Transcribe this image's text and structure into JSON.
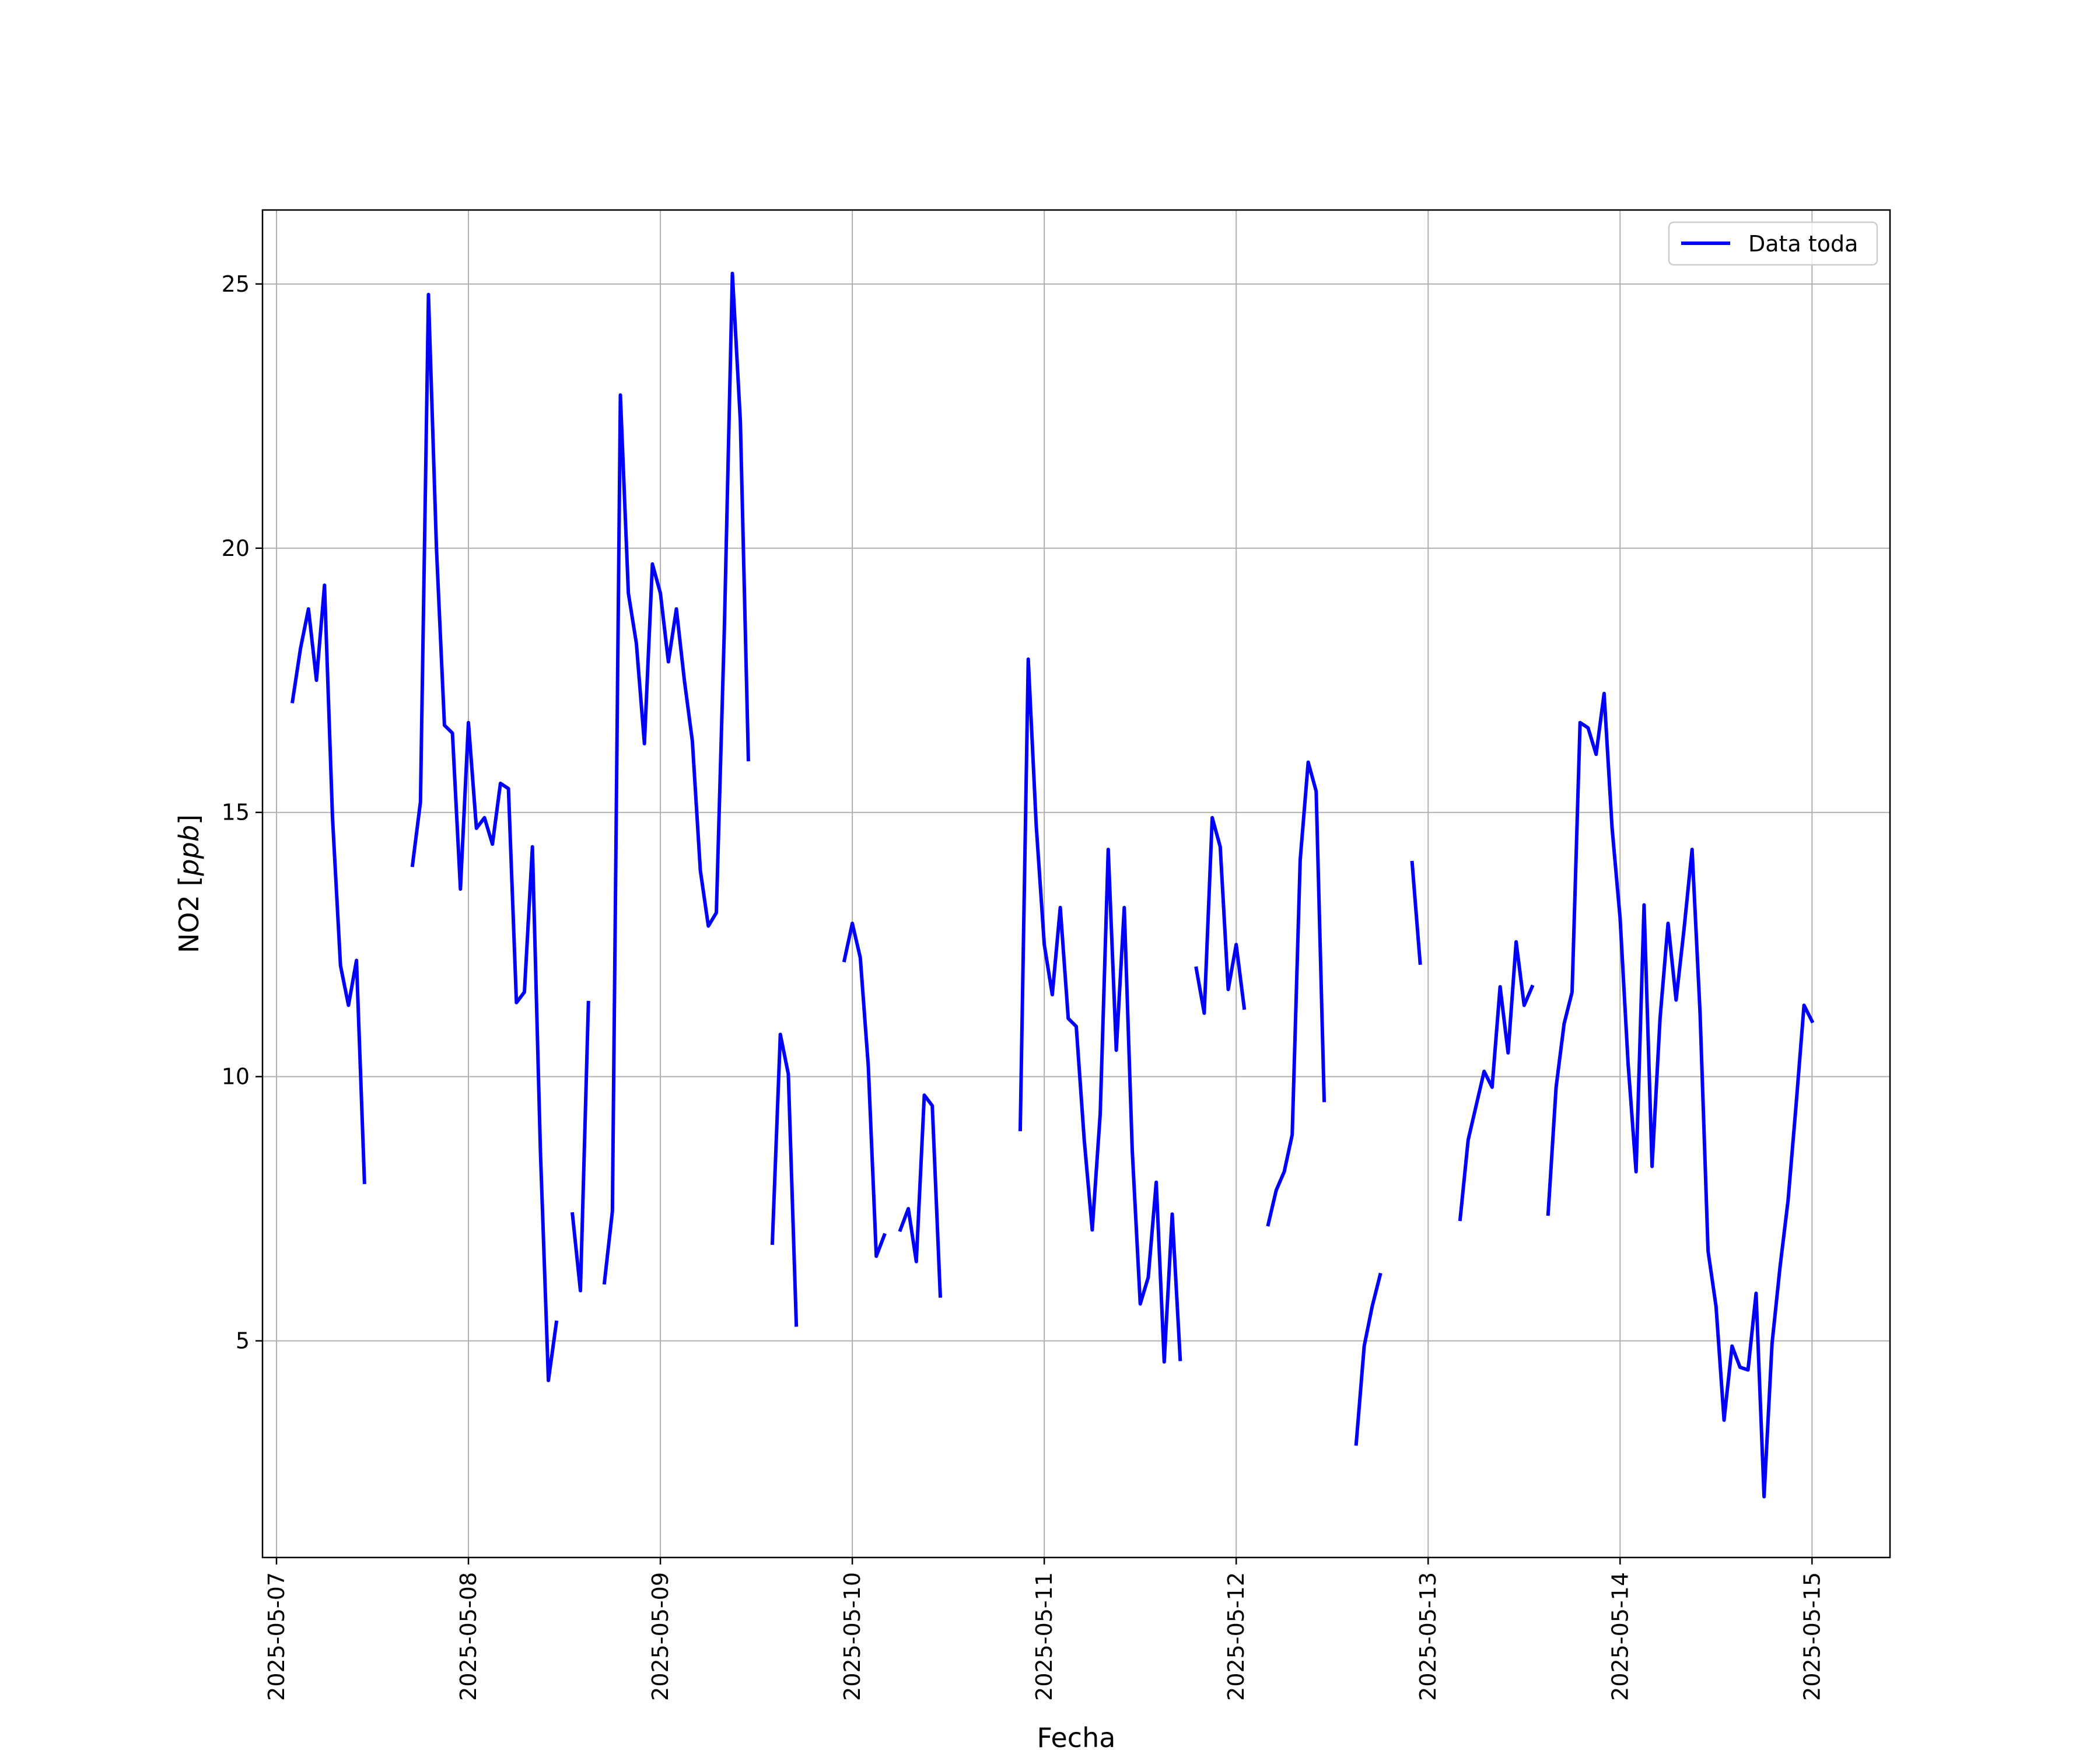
{
  "chart_data": {
    "type": "line",
    "title": "",
    "xlabel": "Fecha",
    "ylabel_main": "NO2 [",
    "ylabel_unit": "ppb",
    "ylabel_close": "]",
    "xlim": [
      "2025-05-06T22:15",
      "2025-05-15T09:45"
    ],
    "ylim": [
      0.9,
      26.4
    ],
    "x_ticks": [
      "2025-05-07",
      "2025-05-08",
      "2025-05-09",
      "2025-05-10",
      "2025-05-11",
      "2025-05-12",
      "2025-05-13",
      "2025-05-14",
      "2025-05-15"
    ],
    "y_ticks": [
      5,
      10,
      15,
      20,
      25
    ],
    "grid": true,
    "legend_position": "top-right",
    "series": [
      {
        "name": "Data toda",
        "color": "#0000ff",
        "segments": [
          [
            [
              "2025-05-07T02:00",
              17.1
            ],
            [
              "2025-05-07T03:00",
              18.1
            ],
            [
              "2025-05-07T04:00",
              18.85
            ],
            [
              "2025-05-07T05:00",
              17.5
            ],
            [
              "2025-05-07T06:00",
              19.3
            ],
            [
              "2025-05-07T07:00",
              14.9
            ],
            [
              "2025-05-07T08:00",
              12.1
            ],
            [
              "2025-05-07T09:00",
              11.35
            ],
            [
              "2025-05-07T10:00",
              12.2
            ],
            [
              "2025-05-07T11:00",
              8.0
            ]
          ],
          [
            [
              "2025-05-07T17:00",
              14.0
            ],
            [
              "2025-05-07T18:00",
              15.2
            ],
            [
              "2025-05-07T19:00",
              24.8
            ],
            [
              "2025-05-07T20:00",
              20.0
            ],
            [
              "2025-05-07T21:00",
              16.65
            ],
            [
              "2025-05-07T22:00",
              16.5
            ],
            [
              "2025-05-07T23:00",
              13.55
            ],
            [
              "2025-05-08T00:00",
              16.7
            ],
            [
              "2025-05-08T01:00",
              14.7
            ],
            [
              "2025-05-08T02:00",
              14.9
            ],
            [
              "2025-05-08T03:00",
              14.4
            ],
            [
              "2025-05-08T04:00",
              15.55
            ],
            [
              "2025-05-08T05:00",
              15.45
            ],
            [
              "2025-05-08T06:00",
              11.4
            ],
            [
              "2025-05-08T07:00",
              11.6
            ],
            [
              "2025-05-08T08:00",
              14.35
            ],
            [
              "2025-05-08T09:00",
              8.6
            ],
            [
              "2025-05-08T10:00",
              4.25
            ],
            [
              "2025-05-08T11:00",
              5.35
            ]
          ],
          [
            [
              "2025-05-08T13:00",
              7.4
            ],
            [
              "2025-05-08T14:00",
              5.95
            ],
            [
              "2025-05-08T15:00",
              11.4
            ]
          ],
          [
            [
              "2025-05-08T17:00",
              6.1
            ],
            [
              "2025-05-08T18:00",
              7.45
            ],
            [
              "2025-05-08T19:00",
              22.9
            ],
            [
              "2025-05-08T20:00",
              19.15
            ],
            [
              "2025-05-08T21:00",
              18.2
            ],
            [
              "2025-05-08T22:00",
              16.3
            ],
            [
              "2025-05-08T23:00",
              19.7
            ],
            [
              "2025-05-09T00:00",
              19.15
            ],
            [
              "2025-05-09T01:00",
              17.85
            ],
            [
              "2025-05-09T02:00",
              18.85
            ],
            [
              "2025-05-09T03:00",
              17.5
            ],
            [
              "2025-05-09T04:00",
              16.35
            ],
            [
              "2025-05-09T05:00",
              13.9
            ],
            [
              "2025-05-09T06:00",
              12.85
            ],
            [
              "2025-05-09T07:00",
              13.1
            ],
            [
              "2025-05-09T08:00",
              18.5
            ],
            [
              "2025-05-09T09:00",
              25.2
            ],
            [
              "2025-05-09T10:00",
              22.4
            ],
            [
              "2025-05-09T11:00",
              16.0
            ]
          ],
          [
            [
              "2025-05-09T14:00",
              6.85
            ],
            [
              "2025-05-09T15:00",
              10.8
            ],
            [
              "2025-05-09T16:00",
              10.05
            ],
            [
              "2025-05-09T17:00",
              5.3
            ]
          ],
          [
            [
              "2025-05-09T23:00",
              12.2
            ],
            [
              "2025-05-10T00:00",
              12.9
            ],
            [
              "2025-05-10T01:00",
              12.25
            ],
            [
              "2025-05-10T02:00",
              10.2
            ],
            [
              "2025-05-10T03:00",
              6.6
            ],
            [
              "2025-05-10T04:00",
              7.0
            ]
          ],
          [
            [
              "2025-05-10T06:00",
              7.1
            ],
            [
              "2025-05-10T07:00",
              7.5
            ],
            [
              "2025-05-10T08:00",
              6.5
            ],
            [
              "2025-05-10T09:00",
              9.65
            ],
            [
              "2025-05-10T10:00",
              9.45
            ],
            [
              "2025-05-10T11:00",
              5.85
            ]
          ],
          [
            [
              "2025-05-10T21:00",
              9.0
            ],
            [
              "2025-05-10T22:00",
              17.9
            ],
            [
              "2025-05-10T23:00",
              14.75
            ],
            [
              "2025-05-11T00:00",
              12.5
            ],
            [
              "2025-05-11T01:00",
              11.55
            ],
            [
              "2025-05-11T02:00",
              13.2
            ],
            [
              "2025-05-11T03:00",
              11.1
            ],
            [
              "2025-05-11T04:00",
              10.95
            ],
            [
              "2025-05-11T05:00",
              8.8
            ],
            [
              "2025-05-11T06:00",
              7.1
            ],
            [
              "2025-05-11T07:00",
              9.3
            ],
            [
              "2025-05-11T08:00",
              14.3
            ],
            [
              "2025-05-11T09:00",
              10.5
            ],
            [
              "2025-05-11T10:00",
              13.2
            ],
            [
              "2025-05-11T11:00",
              8.6
            ],
            [
              "2025-05-11T12:00",
              5.7
            ],
            [
              "2025-05-11T13:00",
              6.2
            ],
            [
              "2025-05-11T14:00",
              8.0
            ],
            [
              "2025-05-11T15:00",
              4.6
            ],
            [
              "2025-05-11T16:00",
              7.4
            ],
            [
              "2025-05-11T17:00",
              4.65
            ]
          ],
          [
            [
              "2025-05-11T19:00",
              12.05
            ],
            [
              "2025-05-11T20:00",
              11.2
            ],
            [
              "2025-05-11T21:00",
              14.9
            ],
            [
              "2025-05-11T22:00",
              14.35
            ],
            [
              "2025-05-11T23:00",
              11.65
            ],
            [
              "2025-05-12T00:00",
              12.5
            ],
            [
              "2025-05-12T01:00",
              11.3
            ]
          ],
          [
            [
              "2025-05-12T04:00",
              7.2
            ],
            [
              "2025-05-12T05:00",
              7.85
            ],
            [
              "2025-05-12T06:00",
              8.2
            ],
            [
              "2025-05-12T07:00",
              8.9
            ],
            [
              "2025-05-12T08:00",
              14.1
            ],
            [
              "2025-05-12T09:00",
              15.95
            ],
            [
              "2025-05-12T10:00",
              15.4
            ],
            [
              "2025-05-12T11:00",
              9.55
            ]
          ],
          [
            [
              "2025-05-12T15:00",
              3.05
            ],
            [
              "2025-05-12T16:00",
              4.9
            ],
            [
              "2025-05-12T17:00",
              5.65
            ],
            [
              "2025-05-12T18:00",
              6.25
            ]
          ],
          [
            [
              "2025-05-12T22:00",
              14.05
            ],
            [
              "2025-05-12T23:00",
              12.15
            ]
          ],
          [
            [
              "2025-05-13T04:00",
              7.3
            ],
            [
              "2025-05-13T05:00",
              8.8
            ],
            [
              "2025-05-13T06:00",
              9.45
            ],
            [
              "2025-05-13T07:00",
              10.1
            ],
            [
              "2025-05-13T08:00",
              9.8
            ],
            [
              "2025-05-13T09:00",
              11.7
            ],
            [
              "2025-05-13T10:00",
              10.45
            ],
            [
              "2025-05-13T11:00",
              12.55
            ],
            [
              "2025-05-13T12:00",
              11.35
            ],
            [
              "2025-05-13T13:00",
              11.7
            ]
          ],
          [
            [
              "2025-05-13T15:00",
              7.4
            ],
            [
              "2025-05-13T16:00",
              9.8
            ],
            [
              "2025-05-13T17:00",
              11.0
            ],
            [
              "2025-05-13T18:00",
              11.6
            ],
            [
              "2025-05-13T19:00",
              16.7
            ],
            [
              "2025-05-13T20:00",
              16.6
            ],
            [
              "2025-05-13T21:00",
              16.1
            ],
            [
              "2025-05-13T22:00",
              17.25
            ],
            [
              "2025-05-13T23:00",
              14.7
            ],
            [
              "2025-05-14T00:00",
              13.0
            ],
            [
              "2025-05-14T01:00",
              10.25
            ],
            [
              "2025-05-14T02:00",
              8.2
            ],
            [
              "2025-05-14T03:00",
              13.25
            ],
            [
              "2025-05-14T04:00",
              8.3
            ],
            [
              "2025-05-14T05:00",
              11.1
            ],
            [
              "2025-05-14T06:00",
              12.9
            ],
            [
              "2025-05-14T07:00",
              11.45
            ],
            [
              "2025-05-14T08:00",
              12.8
            ],
            [
              "2025-05-14T09:00",
              14.3
            ],
            [
              "2025-05-14T10:00",
              11.2
            ],
            [
              "2025-05-14T11:00",
              6.7
            ],
            [
              "2025-05-14T12:00",
              5.65
            ],
            [
              "2025-05-14T13:00",
              3.5
            ],
            [
              "2025-05-14T14:00",
              4.9
            ],
            [
              "2025-05-14T15:00",
              4.5
            ],
            [
              "2025-05-14T16:00",
              4.45
            ],
            [
              "2025-05-14T17:00",
              5.9
            ],
            [
              "2025-05-14T18:00",
              2.05
            ],
            [
              "2025-05-14T19:00",
              4.95
            ],
            [
              "2025-05-14T20:00",
              6.4
            ],
            [
              "2025-05-14T21:00",
              7.65
            ],
            [
              "2025-05-14T22:00",
              9.45
            ],
            [
              "2025-05-14T23:00",
              11.35
            ],
            [
              "2025-05-15T00:00",
              11.05
            ]
          ]
        ]
      }
    ]
  }
}
